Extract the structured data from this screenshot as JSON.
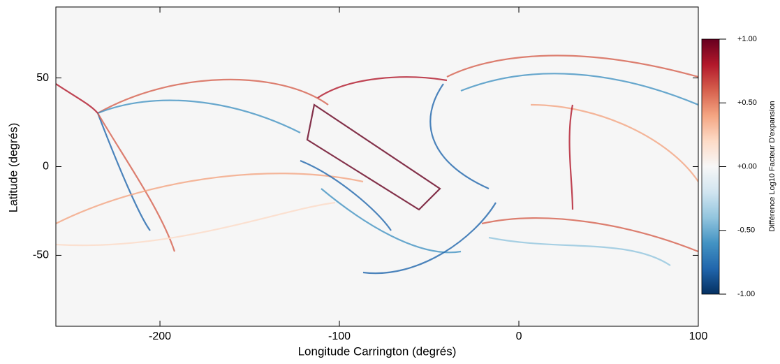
{
  "chart_data": {
    "type": "heatmap",
    "xlabel": "Longitude Carrington (degrés)",
    "ylabel": "Latitude (degrés)",
    "xlim": [
      -258,
      100
    ],
    "ylim": [
      -90,
      90
    ],
    "xticks": [
      -200,
      -100,
      0,
      100
    ],
    "yticks": [
      -50,
      0,
      50
    ],
    "clim": [
      -1,
      1
    ],
    "colorbar_label": "Différence Log10 Facteur D'expansion",
    "colorbar_ticks": [
      {
        "value": 1,
        "label": "+1.00"
      },
      {
        "value": 0.5,
        "label": "+0.50"
      },
      {
        "value": 0,
        "label": "+0.00"
      },
      {
        "value": -0.5,
        "label": "-0.50"
      },
      {
        "value": -1,
        "label": "-1.00"
      }
    ],
    "colormap": [
      "#053061",
      "#2166ac",
      "#4393c3",
      "#92c5de",
      "#d1e5f0",
      "#f7f7f7",
      "#fddbc7",
      "#f4a582",
      "#d6604d",
      "#b2182b",
      "#67001f"
    ]
  }
}
